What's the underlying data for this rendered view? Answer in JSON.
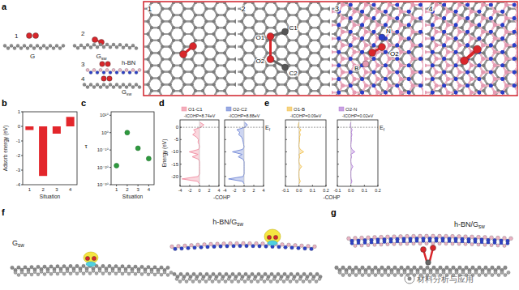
{
  "chart_data": [
    {
      "type": "bar",
      "title": "b",
      "categories": [
        "1",
        "2",
        "3",
        "4"
      ],
      "values": [
        -0.25,
        -3.4,
        -0.5,
        0.65
      ],
      "color": "#e3262b",
      "ylim": [
        -4,
        1
      ],
      "yticks": [
        -4,
        -3,
        -2,
        -1,
        0,
        1
      ],
      "x_label": "Situation",
      "y_label": "Adsorb energy (eV)"
    },
    {
      "type": "scatter",
      "title": "c",
      "x": [
        1,
        2,
        3,
        4
      ],
      "values": [
        1e-19,
        1,
        1e-09,
        1e-15
      ],
      "color": "#2e9a3e",
      "marker": "circle",
      "log": "y",
      "xlim": [
        0.5,
        4.5
      ],
      "xticks": [
        1,
        2,
        3,
        4
      ],
      "ylim": [
        1e-30,
        1000000000000.0
      ],
      "yticks": [
        {
          "value": 1e-30,
          "label": "10⁻³⁰"
        },
        {
          "value": 1e-20,
          "label": "10⁻²⁰"
        },
        {
          "value": 1e-10,
          "label": "10⁻¹⁰"
        },
        {
          "value": 1,
          "label": "10⁰"
        },
        {
          "value": 10000000000.0,
          "label": "10¹⁰"
        }
      ],
      "x_label": "Situation",
      "y_label": "τ"
    },
    {
      "type": "line",
      "title": "d",
      "orientation": "horizontal",
      "x": [
        -23,
        -22,
        -21,
        -20,
        -19,
        -18,
        -17,
        -16,
        -15,
        -14,
        -13,
        -12,
        -11,
        -10,
        -9,
        -8,
        -7,
        -6,
        -5,
        -4,
        -3,
        -2,
        -1,
        0,
        1,
        2
      ],
      "xlim": [
        -24,
        3
      ],
      "xticks": [
        -20,
        -15,
        -10,
        -5,
        0
      ],
      "ylim": [
        -4,
        4
      ],
      "yticks": [
        -4,
        -2,
        0,
        2,
        4
      ],
      "x_label": "Energy (eV)",
      "y_label": "-COHP",
      "fermi_label": {
        "text": "E",
        "sub": "f"
      },
      "series": [
        {
          "name": "O1-C1",
          "color": "#f08ca0",
          "annotation": "-ICOHP=8.74eV",
          "values": [
            0,
            -0.4,
            -3.6,
            -0.3,
            0,
            0,
            0,
            0,
            0,
            0,
            -0.2,
            -1.5,
            -0.3,
            -2.1,
            -0.2,
            0,
            -0.1,
            -0.3,
            -0.2,
            -0.6,
            -1.4,
            -0.8,
            -1.2,
            0.3,
            0.9,
            0.1
          ]
        },
        {
          "name": "O2-C2",
          "color": "#6f86d6",
          "annotation": "-ICOHP=8.88eV",
          "values": [
            0,
            -0.3,
            -3.2,
            -0.2,
            0,
            0,
            0,
            0,
            0,
            0,
            -0.2,
            -1.2,
            -0.4,
            -2.4,
            -0.3,
            0,
            -0.1,
            -0.2,
            -0.3,
            -0.5,
            -1.1,
            -0.9,
            -1.5,
            0.2,
            0.7,
            0.1
          ]
        }
      ]
    },
    {
      "type": "line",
      "title": "e",
      "orientation": "horizontal",
      "tick_labels": "y",
      "x": [
        -23,
        -22,
        -21,
        -20,
        -19,
        -18,
        -17,
        -16,
        -15,
        -14,
        -13,
        -12,
        -11,
        -10,
        -9,
        -8,
        -7,
        -6,
        -5,
        -4,
        -3,
        -2,
        -1,
        0,
        1,
        2
      ],
      "xlim": [
        -24,
        3
      ],
      "xticks": [
        -20,
        -15,
        -10,
        -5,
        0
      ],
      "ylim": [
        -0.1,
        0.2
      ],
      "yticks": [
        -0.1,
        {
          "value": 0,
          "label": "0.0"
        },
        0.1,
        0.2
      ],
      "y_label": "-COHP",
      "fermi_label": {
        "text": "E",
        "sub": "f"
      },
      "series": [
        {
          "name": "O1-B",
          "color": "#f2c14e",
          "annotation": "-ICOHP=0.09eV",
          "values": [
            0,
            0.01,
            0.003,
            0,
            0,
            0,
            0.005,
            0.02,
            0.004,
            0,
            0,
            0.006,
            0,
            0.035,
            0.01,
            0,
            0,
            0.003,
            0.005,
            0.004,
            0.01,
            0.004,
            0.015,
            -0.003,
            -0.005,
            0
          ]
        },
        {
          "name": "O2-N",
          "color": "#b07ad6",
          "annotation": "-ICOHP=0.02eV",
          "values": [
            0,
            0.008,
            0.002,
            0,
            0,
            0,
            0.004,
            0.015,
            0.003,
            0,
            0,
            0.005,
            0,
            0.03,
            0.008,
            0,
            0,
            0.002,
            0.004,
            0.003,
            0.008,
            0.003,
            0.01,
            -0.002,
            -0.004,
            0
          ]
        }
      ]
    }
  ],
  "figure": {
    "a": {
      "letter": "a",
      "schematic": {
        "numbers": [
          "1",
          "2",
          "3",
          "4"
        ],
        "graphene": "G",
        "defect_graphene": {
          "text": "G",
          "sub": "sw"
        },
        "hbn": "h-BN"
      },
      "frames": [
        {
          "number": "1",
          "labels": []
        },
        {
          "number": "2",
          "labels": [
            "O1",
            "C1",
            "O2",
            "C2"
          ]
        },
        {
          "number": "3",
          "labels": [
            "N",
            "O2",
            "B"
          ]
        },
        {
          "number": "4",
          "labels": []
        }
      ]
    },
    "f": {
      "letter": "f",
      "left": {
        "text": "G",
        "sub": "sw"
      },
      "right": {
        "text": "h-BN/G",
        "sub": "sw"
      }
    },
    "g": {
      "letter": "g",
      "label": {
        "text": "h-BN/G",
        "sub": "sw"
      }
    },
    "watermark": "材料分析与应用"
  }
}
